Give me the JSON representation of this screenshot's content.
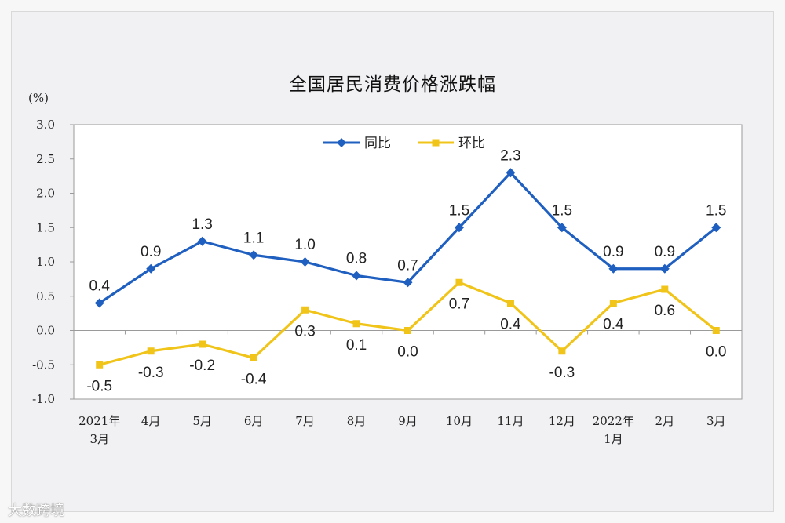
{
  "title": "全国居民消费价格涨跌幅",
  "unit_label": "(%)",
  "watermark": "大数跨境",
  "chart_data": {
    "type": "line",
    "title": "全国居民消费价格涨跌幅",
    "ylabel": "(%)",
    "ylim": [
      -1.0,
      3.0
    ],
    "yticks": [
      "3.0",
      "2.5",
      "2.0",
      "1.5",
      "1.0",
      "0.5",
      "0.0",
      "-0.5",
      "-1.0"
    ],
    "categories": [
      [
        "2021年",
        "3月"
      ],
      [
        "4月"
      ],
      [
        "5月"
      ],
      [
        "6月"
      ],
      [
        "7月"
      ],
      [
        "8月"
      ],
      [
        "9月"
      ],
      [
        "10月"
      ],
      [
        "11月"
      ],
      [
        "12月"
      ],
      [
        "2022年",
        "1月"
      ],
      [
        "2月"
      ],
      [
        "3月"
      ]
    ],
    "legend_position": "top-center",
    "series": [
      {
        "name": "同比",
        "color": "#1f5fc0",
        "marker": "diamond",
        "values": [
          0.4,
          0.9,
          1.3,
          1.1,
          1.0,
          0.8,
          0.7,
          1.5,
          2.3,
          1.5,
          0.9,
          0.9,
          1.5
        ],
        "labels": [
          "0.4",
          "0.9",
          "1.3",
          "1.1",
          "1.0",
          "0.8",
          "0.7",
          "1.5",
          "2.3",
          "1.5",
          "0.9",
          "0.9",
          "1.5"
        ]
      },
      {
        "name": "环比",
        "color": "#f0c419",
        "marker": "square",
        "values": [
          -0.5,
          -0.3,
          -0.2,
          -0.4,
          0.3,
          0.1,
          0.0,
          0.7,
          0.4,
          -0.3,
          0.4,
          0.6,
          0.0
        ],
        "labels": [
          "-0.5",
          "-0.3",
          "-0.2",
          "-0.4",
          "0.3",
          "0.1",
          "0.0",
          "0.7",
          "0.4",
          "-0.3",
          "0.4",
          "0.6",
          "0.0"
        ]
      }
    ]
  }
}
